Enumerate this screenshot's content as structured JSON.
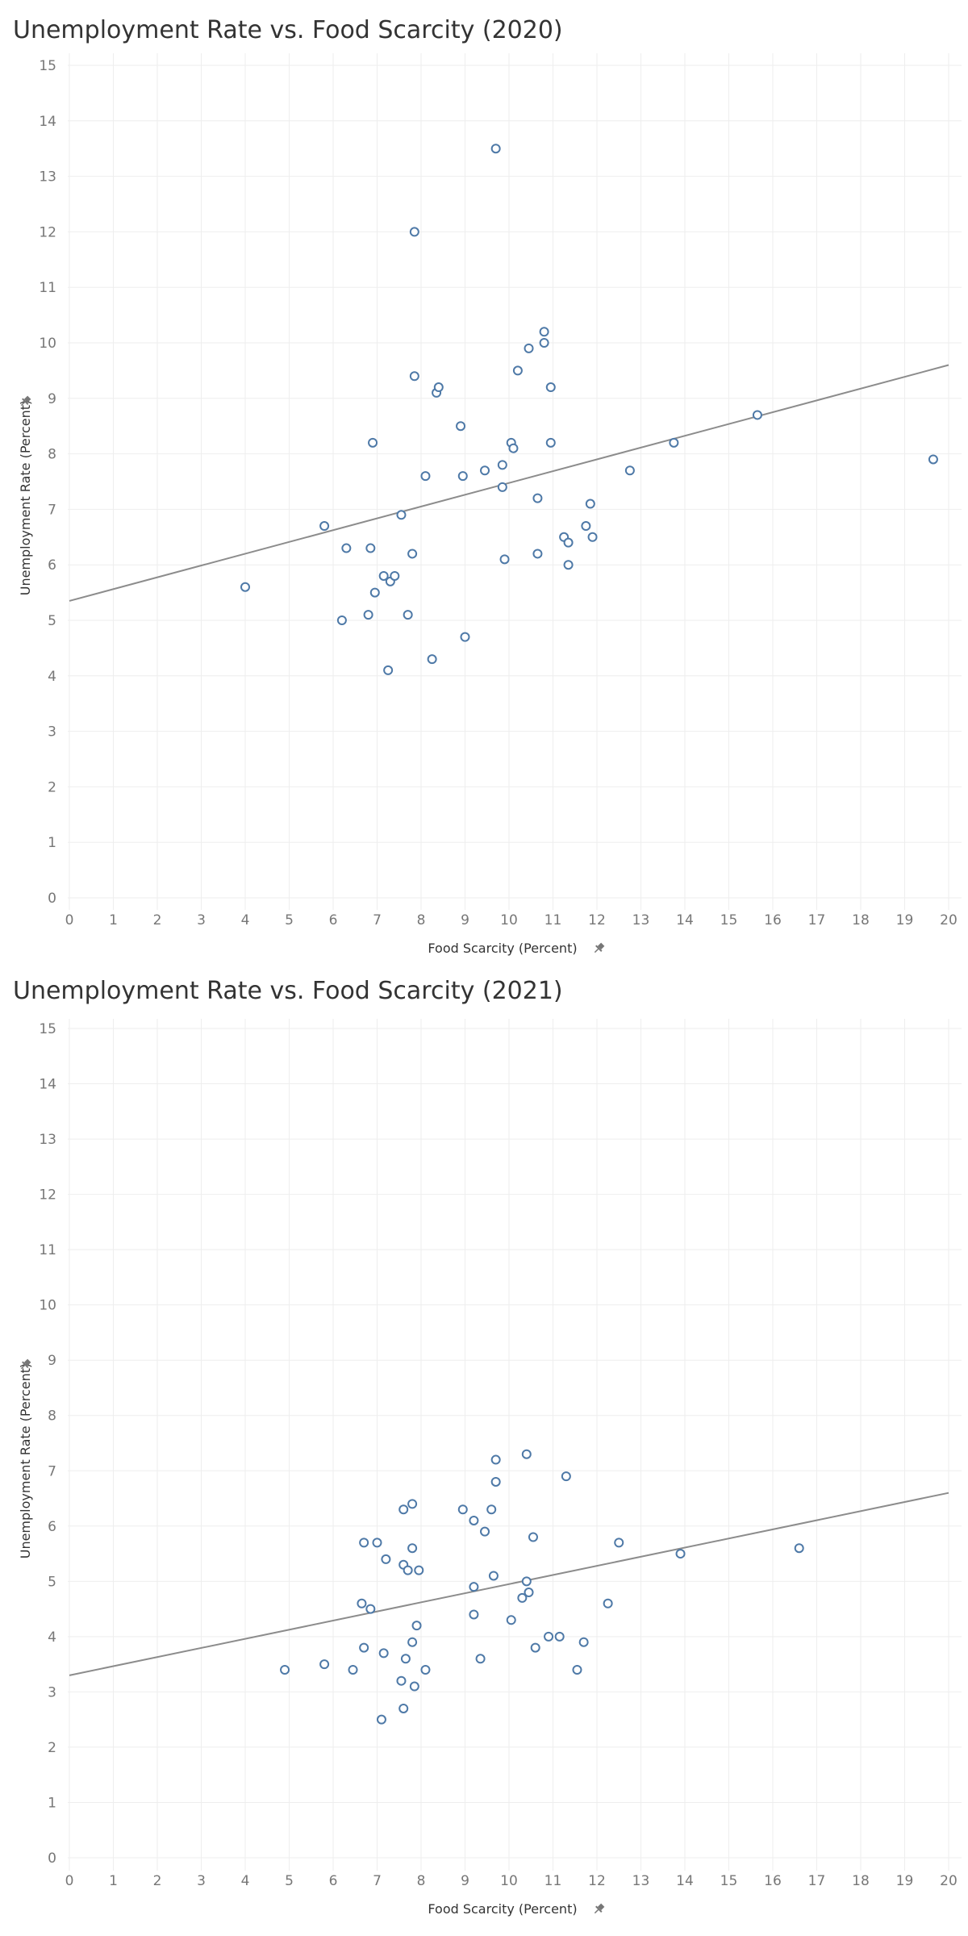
{
  "chart_data": [
    {
      "type": "scatter",
      "title": "Unemployment Rate vs. Food Scarcity (2020)",
      "xlabel": "Food Scarcity (Percent)",
      "ylabel": "Unemployment Rate (Percent)",
      "xlim": [
        0,
        20
      ],
      "ylim": [
        0,
        15
      ],
      "x_ticks": [
        0,
        1,
        2,
        3,
        4,
        5,
        6,
        7,
        8,
        9,
        10,
        11,
        12,
        13,
        14,
        15,
        16,
        17,
        18,
        19,
        20
      ],
      "y_ticks": [
        0,
        1,
        2,
        3,
        4,
        5,
        6,
        7,
        8,
        9,
        10,
        11,
        12,
        13,
        14,
        15
      ],
      "grid": true,
      "pin_icon": "pin-icon",
      "trend_line": {
        "x": [
          0,
          20
        ],
        "y": [
          5.35,
          9.6
        ]
      },
      "points": [
        {
          "x": 4.0,
          "y": 5.6
        },
        {
          "x": 5.8,
          "y": 6.7
        },
        {
          "x": 6.2,
          "y": 5.0
        },
        {
          "x": 6.3,
          "y": 6.3
        },
        {
          "x": 6.8,
          "y": 5.1
        },
        {
          "x": 6.85,
          "y": 6.3
        },
        {
          "x": 6.9,
          "y": 8.2
        },
        {
          "x": 6.95,
          "y": 5.5
        },
        {
          "x": 7.15,
          "y": 5.8
        },
        {
          "x": 7.25,
          "y": 4.1
        },
        {
          "x": 7.3,
          "y": 5.7
        },
        {
          "x": 7.4,
          "y": 5.8
        },
        {
          "x": 7.55,
          "y": 6.9
        },
        {
          "x": 7.7,
          "y": 5.1
        },
        {
          "x": 7.8,
          "y": 6.2
        },
        {
          "x": 7.85,
          "y": 12.0
        },
        {
          "x": 7.85,
          "y": 9.4
        },
        {
          "x": 8.1,
          "y": 7.6
        },
        {
          "x": 8.25,
          "y": 4.3
        },
        {
          "x": 8.35,
          "y": 9.1
        },
        {
          "x": 8.4,
          "y": 9.2
        },
        {
          "x": 8.9,
          "y": 8.5
        },
        {
          "x": 8.95,
          "y": 7.6
        },
        {
          "x": 9.0,
          "y": 4.7
        },
        {
          "x": 9.45,
          "y": 7.7
        },
        {
          "x": 9.7,
          "y": 13.5
        },
        {
          "x": 9.85,
          "y": 7.8
        },
        {
          "x": 9.85,
          "y": 7.4
        },
        {
          "x": 9.9,
          "y": 6.1
        },
        {
          "x": 10.05,
          "y": 8.2
        },
        {
          "x": 10.1,
          "y": 8.1
        },
        {
          "x": 10.2,
          "y": 9.5
        },
        {
          "x": 10.45,
          "y": 9.9
        },
        {
          "x": 10.65,
          "y": 7.2
        },
        {
          "x": 10.65,
          "y": 6.2
        },
        {
          "x": 10.8,
          "y": 10.2
        },
        {
          "x": 10.8,
          "y": 10.0
        },
        {
          "x": 10.95,
          "y": 9.2
        },
        {
          "x": 10.95,
          "y": 8.2
        },
        {
          "x": 11.25,
          "y": 6.5
        },
        {
          "x": 11.35,
          "y": 6.4
        },
        {
          "x": 11.35,
          "y": 6.0
        },
        {
          "x": 11.75,
          "y": 6.7
        },
        {
          "x": 11.85,
          "y": 7.1
        },
        {
          "x": 11.9,
          "y": 6.5
        },
        {
          "x": 12.75,
          "y": 7.7
        },
        {
          "x": 13.75,
          "y": 8.2
        },
        {
          "x": 15.65,
          "y": 8.7
        },
        {
          "x": 19.65,
          "y": 7.9
        }
      ]
    },
    {
      "type": "scatter",
      "title": "Unemployment Rate vs. Food Scarcity (2021)",
      "xlabel": "Food Scarcity (Percent)",
      "ylabel": "Unemployment Rate (Percent)",
      "xlim": [
        0,
        20
      ],
      "ylim": [
        0,
        15
      ],
      "x_ticks": [
        0,
        1,
        2,
        3,
        4,
        5,
        6,
        7,
        8,
        9,
        10,
        11,
        12,
        13,
        14,
        15,
        16,
        17,
        18,
        19,
        20
      ],
      "y_ticks": [
        0,
        1,
        2,
        3,
        4,
        5,
        6,
        7,
        8,
        9,
        10,
        11,
        12,
        13,
        14,
        15
      ],
      "grid": true,
      "pin_icon": "pin-icon",
      "trend_line": {
        "x": [
          0,
          20
        ],
        "y": [
          3.3,
          6.6
        ]
      },
      "points": [
        {
          "x": 4.9,
          "y": 3.4
        },
        {
          "x": 5.8,
          "y": 3.5
        },
        {
          "x": 6.45,
          "y": 3.4
        },
        {
          "x": 6.65,
          "y": 4.6
        },
        {
          "x": 6.7,
          "y": 3.8
        },
        {
          "x": 6.7,
          "y": 5.7
        },
        {
          "x": 6.85,
          "y": 4.5
        },
        {
          "x": 7.0,
          "y": 5.7
        },
        {
          "x": 7.1,
          "y": 2.5
        },
        {
          "x": 7.15,
          "y": 3.7
        },
        {
          "x": 7.2,
          "y": 5.4
        },
        {
          "x": 7.55,
          "y": 3.2
        },
        {
          "x": 7.6,
          "y": 2.7
        },
        {
          "x": 7.6,
          "y": 6.3
        },
        {
          "x": 7.6,
          "y": 5.3
        },
        {
          "x": 7.65,
          "y": 3.6
        },
        {
          "x": 7.7,
          "y": 5.2
        },
        {
          "x": 7.8,
          "y": 6.4
        },
        {
          "x": 7.8,
          "y": 5.6
        },
        {
          "x": 7.8,
          "y": 3.9
        },
        {
          "x": 7.85,
          "y": 3.1
        },
        {
          "x": 7.9,
          "y": 4.2
        },
        {
          "x": 7.95,
          "y": 5.2
        },
        {
          "x": 8.1,
          "y": 3.4
        },
        {
          "x": 8.95,
          "y": 6.3
        },
        {
          "x": 9.2,
          "y": 6.1
        },
        {
          "x": 9.2,
          "y": 4.9
        },
        {
          "x": 9.2,
          "y": 4.4
        },
        {
          "x": 9.35,
          "y": 3.6
        },
        {
          "x": 9.45,
          "y": 5.9
        },
        {
          "x": 9.6,
          "y": 6.3
        },
        {
          "x": 9.7,
          "y": 7.2
        },
        {
          "x": 9.7,
          "y": 6.8
        },
        {
          "x": 9.65,
          "y": 5.1
        },
        {
          "x": 10.05,
          "y": 4.3
        },
        {
          "x": 10.3,
          "y": 4.7
        },
        {
          "x": 10.4,
          "y": 7.3
        },
        {
          "x": 10.4,
          "y": 5.0
        },
        {
          "x": 10.45,
          "y": 4.8
        },
        {
          "x": 10.55,
          "y": 5.8
        },
        {
          "x": 10.6,
          "y": 3.8
        },
        {
          "x": 10.9,
          "y": 4.0
        },
        {
          "x": 11.15,
          "y": 4.0
        },
        {
          "x": 11.3,
          "y": 6.9
        },
        {
          "x": 11.55,
          "y": 3.4
        },
        {
          "x": 11.7,
          "y": 3.9
        },
        {
          "x": 12.25,
          "y": 4.6
        },
        {
          "x": 12.5,
          "y": 5.7
        },
        {
          "x": 13.9,
          "y": 5.5
        },
        {
          "x": 16.6,
          "y": 5.6
        }
      ]
    }
  ]
}
